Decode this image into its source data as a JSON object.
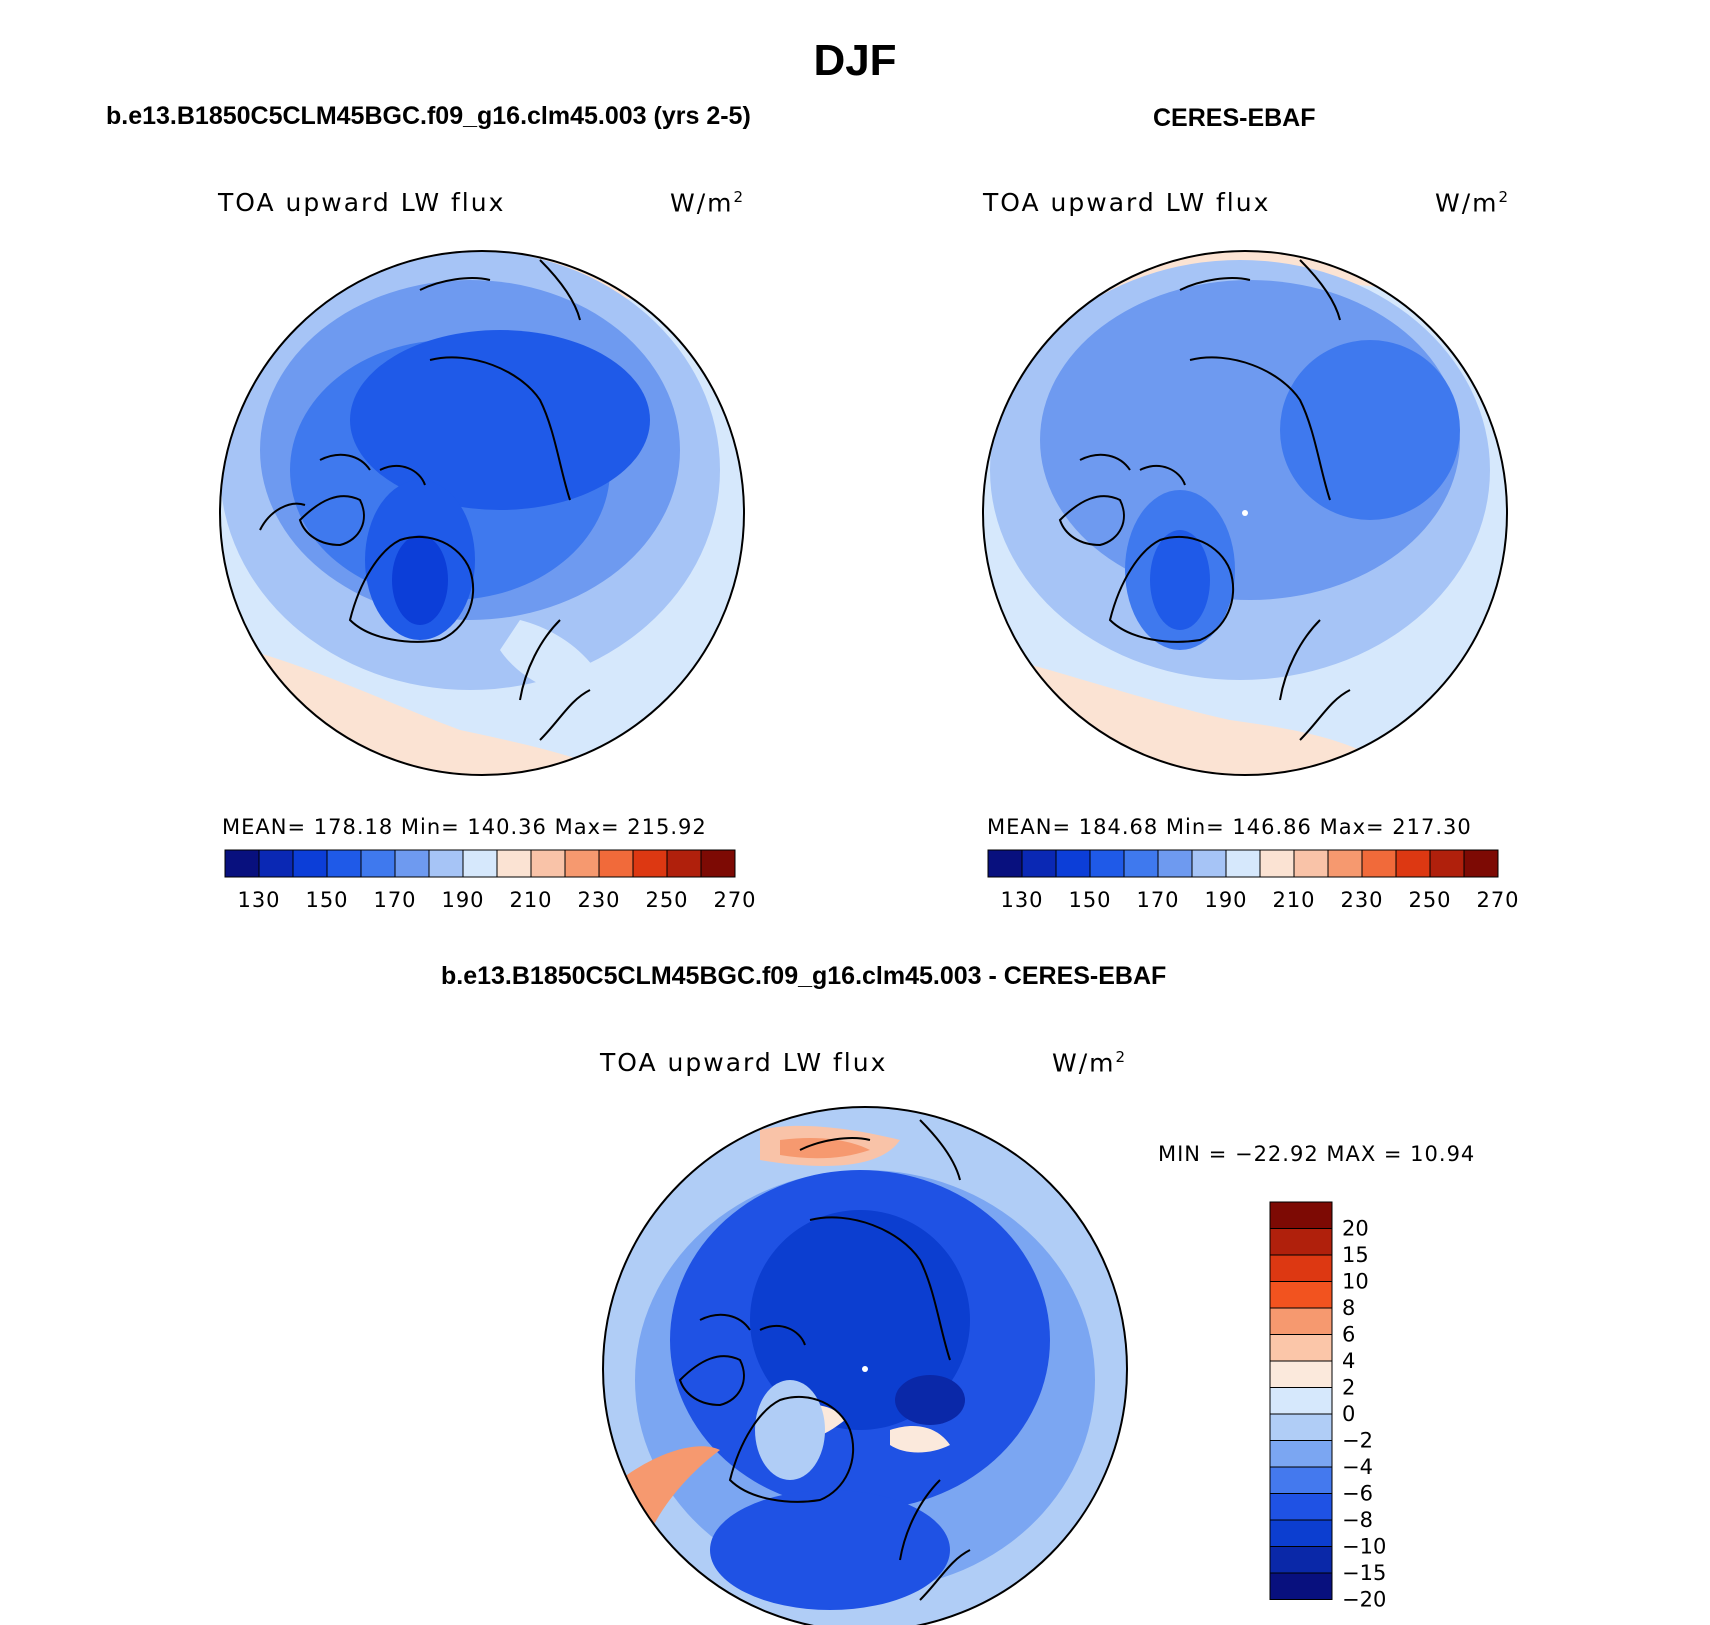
{
  "figure_title": "DJF",
  "panels": [
    {
      "title": "b.e13.B1850C5CLM45BGC.f09_g16.clm45.003 (yrs 2-5)",
      "variable": "TOA upward LW flux",
      "units": "W/m",
      "units_sup": "2",
      "stats_text": "MEAN= 178.18   Min= 140.36   Max= 215.92"
    },
    {
      "title": "CERES-EBAF",
      "variable": "TOA upward LW flux",
      "units": "W/m",
      "units_sup": "2",
      "stats_text": "MEAN= 184.68   Min= 146.86   Max= 217.30"
    },
    {
      "title": "b.e13.B1850C5CLM45BGC.f09_g16.clm45.003 - CERES-EBAF",
      "variable": "TOA upward LW flux",
      "units": "W/m",
      "units_sup": "2",
      "stats_text": "MIN = −22.92 MAX =   10.94"
    }
  ],
  "colorbar_abs": {
    "colors": [
      "#08107e",
      "#0a28b4",
      "#0c3ed8",
      "#1f5ae8",
      "#3f79ee",
      "#6e9af0",
      "#a6c4f6",
      "#d6e8fc",
      "#fbe3d3",
      "#f9c3a8",
      "#f6996f",
      "#f16a3a",
      "#dd3812",
      "#b0200c",
      "#7d0a04"
    ],
    "tick_labels": [
      "130",
      "150",
      "170",
      "190",
      "210",
      "230",
      "250",
      "270"
    ]
  },
  "colorbar_diff": {
    "colors": [
      "#7d0a04",
      "#b0200c",
      "#dd3812",
      "#f2531f",
      "#f6996f",
      "#fbc6a9",
      "#fbe9dc",
      "#d6e8fc",
      "#b0cdf6",
      "#7ba6f2",
      "#4479ee",
      "#1f52e4",
      "#0c3ed0",
      "#0a28a8",
      "#08107e"
    ],
    "tick_labels": [
      "20",
      "15",
      "10",
      "8",
      "6",
      "4",
      "2",
      "0",
      "−2",
      "−4",
      "−6",
      "−8",
      "−10",
      "−15",
      "−20"
    ]
  }
}
